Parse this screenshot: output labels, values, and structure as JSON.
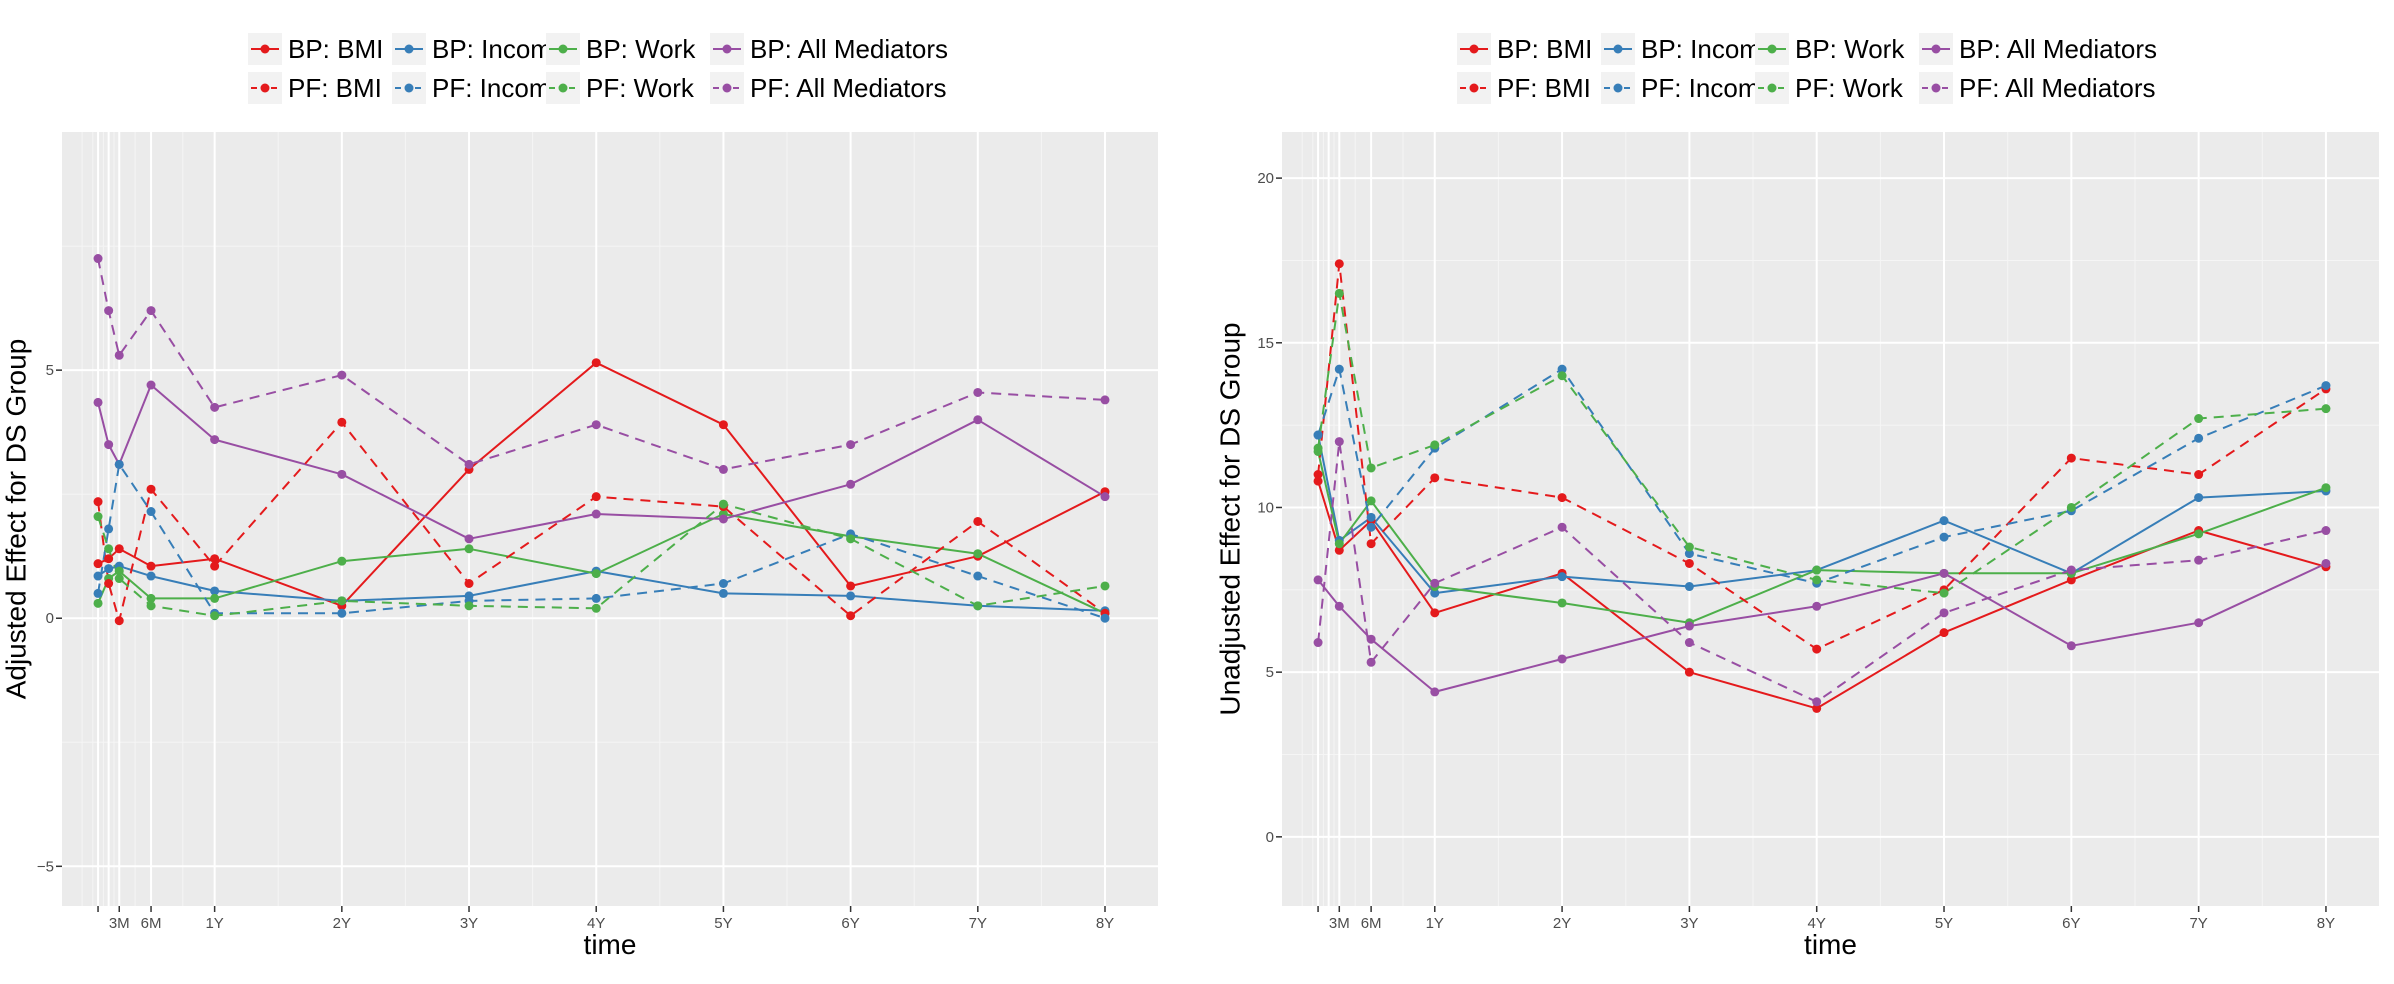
{
  "colors": {
    "BMI": "#e41a1c",
    "Income": "#377eb8",
    "Work": "#4daf4a",
    "All": "#984ea3",
    "panel": "#ebebeb",
    "grid_major": "#ffffff",
    "grid_minor": "#f5f5f5",
    "axis_text": "#4d4d4d"
  },
  "chart_data": [
    {
      "type": "line",
      "ylabel": "Adjusted Effect for DS Group",
      "xlabel": "time",
      "x_ticks": [
        {
          "x": 3,
          "label": "3M"
        },
        {
          "x": 6,
          "label": "6M"
        },
        {
          "x": 12,
          "label": "1Y"
        },
        {
          "x": 24,
          "label": "2Y"
        },
        {
          "x": 36,
          "label": "3Y"
        },
        {
          "x": 48,
          "label": "4Y"
        },
        {
          "x": 60,
          "label": "5Y"
        },
        {
          "x": 72,
          "label": "6Y"
        },
        {
          "x": 84,
          "label": "7Y"
        },
        {
          "x": 96,
          "label": "8Y"
        }
      ],
      "y_ticks": [
        {
          "y": -5,
          "label": "−5"
        },
        {
          "y": 0,
          "label": "0"
        },
        {
          "y": 5,
          "label": "5"
        }
      ],
      "xlim": [
        -2.4,
        101
      ],
      "ylim": [
        -5.8,
        9.8
      ],
      "legend": {
        "position": "top",
        "entries": [
          {
            "label": "BP: BMI",
            "key": "BMI",
            "dashed": false
          },
          {
            "label": "BP: Income",
            "key": "Income",
            "dashed": false
          },
          {
            "label": "BP: Work",
            "key": "Work",
            "dashed": false
          },
          {
            "label": "BP: All Mediators",
            "key": "All",
            "dashed": false
          },
          {
            "label": "PF: BMI",
            "key": "BMI",
            "dashed": true
          },
          {
            "label": "PF: Income",
            "key": "Income",
            "dashed": true
          },
          {
            "label": "PF: Work",
            "key": "Work",
            "dashed": true
          },
          {
            "label": "PF: All Mediators",
            "key": "All",
            "dashed": true
          }
        ]
      },
      "series": [
        {
          "name": "BP: BMI",
          "key": "BMI",
          "dashed": false,
          "x": [
            1,
            2,
            3,
            6,
            12,
            24,
            36,
            48,
            60,
            72,
            84,
            96
          ],
          "y": [
            1.1,
            1.2,
            1.4,
            1.05,
            1.2,
            0.25,
            3.0,
            5.15,
            3.9,
            0.65,
            1.25,
            2.55
          ]
        },
        {
          "name": "BP: Income",
          "key": "Income",
          "dashed": false,
          "x": [
            1,
            2,
            3,
            6,
            12,
            24,
            36,
            48,
            60,
            72,
            84,
            96
          ],
          "y": [
            0.85,
            1.0,
            1.05,
            0.85,
            0.55,
            0.35,
            0.45,
            0.95,
            0.5,
            0.45,
            0.25,
            0.15
          ]
        },
        {
          "name": "BP: Work",
          "key": "Work",
          "dashed": false,
          "x": [
            1,
            2,
            3,
            6,
            12,
            24,
            36,
            48,
            60,
            72,
            84,
            96
          ],
          "y": [
            0.3,
            0.8,
            0.95,
            0.4,
            0.4,
            1.15,
            1.4,
            0.9,
            2.1,
            1.65,
            1.3,
            0.1
          ]
        },
        {
          "name": "BP: All Mediators",
          "key": "All",
          "dashed": false,
          "x": [
            1,
            2,
            3,
            6,
            12,
            24,
            36,
            48,
            60,
            72,
            84,
            96
          ],
          "y": [
            4.35,
            3.5,
            3.1,
            4.7,
            3.6,
            2.9,
            1.6,
            2.1,
            2.0,
            2.7,
            4.0,
            2.45
          ]
        },
        {
          "name": "PF: BMI",
          "key": "BMI",
          "dashed": true,
          "x": [
            1,
            2,
            3,
            6,
            12,
            24,
            36,
            48,
            60,
            72,
            84,
            96
          ],
          "y": [
            2.35,
            0.7,
            -0.05,
            2.6,
            1.05,
            3.95,
            0.7,
            2.45,
            2.25,
            0.05,
            1.95,
            0.1
          ]
        },
        {
          "name": "PF: Income",
          "key": "Income",
          "dashed": true,
          "x": [
            1,
            2,
            3,
            6,
            12,
            24,
            36,
            48,
            60,
            72,
            84,
            96
          ],
          "y": [
            0.5,
            1.8,
            3.1,
            2.15,
            0.1,
            0.1,
            0.35,
            0.4,
            0.7,
            1.7,
            0.85,
            0.0
          ]
        },
        {
          "name": "PF: Work",
          "key": "Work",
          "dashed": true,
          "x": [
            1,
            2,
            3,
            6,
            12,
            24,
            36,
            48,
            60,
            72,
            84,
            96
          ],
          "y": [
            2.05,
            1.4,
            0.8,
            0.25,
            0.05,
            0.35,
            0.25,
            0.2,
            2.3,
            1.6,
            0.25,
            0.65
          ]
        },
        {
          "name": "PF: All Mediators",
          "key": "All",
          "dashed": true,
          "x": [
            1,
            2,
            3,
            6,
            12,
            24,
            36,
            48,
            60,
            72,
            84,
            96
          ],
          "y": [
            7.25,
            6.2,
            5.3,
            6.2,
            4.25,
            4.9,
            3.1,
            3.9,
            3.0,
            3.5,
            4.55,
            4.4
          ]
        }
      ]
    },
    {
      "type": "line",
      "ylabel": "Unadjusted Effect for DS Group",
      "xlabel": "time",
      "x_ticks": [
        {
          "x": 3,
          "label": "3M"
        },
        {
          "x": 6,
          "label": "6M"
        },
        {
          "x": 12,
          "label": "1Y"
        },
        {
          "x": 24,
          "label": "2Y"
        },
        {
          "x": 36,
          "label": "3Y"
        },
        {
          "x": 48,
          "label": "4Y"
        },
        {
          "x": 60,
          "label": "5Y"
        },
        {
          "x": 72,
          "label": "6Y"
        },
        {
          "x": 84,
          "label": "7Y"
        },
        {
          "x": 96,
          "label": "8Y"
        }
      ],
      "y_ticks": [
        {
          "y": 0,
          "label": "0"
        },
        {
          "y": 5,
          "label": "5"
        },
        {
          "x_note": "",
          "y": 10,
          "label": "10"
        },
        {
          "y": 15,
          "label": "15"
        },
        {
          "y": 20,
          "label": "20"
        }
      ],
      "xlim": [
        -2.4,
        101
      ],
      "ylim": [
        -2.1,
        21.4
      ],
      "legend": {
        "position": "top",
        "entries": [
          {
            "label": "BP: BMI",
            "key": "BMI",
            "dashed": false
          },
          {
            "label": "BP: Income",
            "key": "Income",
            "dashed": false
          },
          {
            "label": "BP: Work",
            "key": "Work",
            "dashed": false
          },
          {
            "label": "BP: All Mediators",
            "key": "All",
            "dashed": false
          },
          {
            "label": "PF: BMI",
            "key": "BMI",
            "dashed": true
          },
          {
            "label": "PF: Income",
            "key": "Income",
            "dashed": true
          },
          {
            "label": "PF: Work",
            "key": "Work",
            "dashed": true
          },
          {
            "label": "PF: All Mediators",
            "key": "All",
            "dashed": true
          }
        ]
      },
      "series": [
        {
          "name": "BP: BMI",
          "key": "BMI",
          "dashed": false,
          "x": [
            1,
            3,
            6,
            12,
            24,
            36,
            48,
            60,
            72,
            84,
            96
          ],
          "y": [
            10.8,
            8.7,
            9.6,
            6.8,
            8.0,
            5.0,
            3.9,
            6.2,
            7.8,
            9.3,
            8.2
          ]
        },
        {
          "name": "BP: Income",
          "key": "Income",
          "dashed": false,
          "x": [
            1,
            3,
            6,
            12,
            24,
            36,
            48,
            60,
            72,
            84,
            96
          ],
          "y": [
            12.2,
            9.0,
            9.7,
            7.4,
            7.9,
            7.6,
            8.1,
            9.6,
            8.0,
            10.3,
            10.5
          ]
        },
        {
          "name": "BP: Work",
          "key": "Work",
          "dashed": false,
          "x": [
            1,
            3,
            6,
            12,
            24,
            36,
            48,
            60,
            72,
            84,
            96
          ],
          "y": [
            11.7,
            8.9,
            10.2,
            7.6,
            7.1,
            6.5,
            8.1,
            8.0,
            8.0,
            9.2,
            10.6
          ]
        },
        {
          "name": "BP: All Mediators",
          "key": "All",
          "dashed": false,
          "x": [
            1,
            3,
            6,
            12,
            24,
            36,
            48,
            60,
            72,
            84,
            96
          ],
          "y": [
            7.8,
            7.0,
            6.0,
            4.4,
            5.4,
            6.4,
            7.0,
            8.0,
            5.8,
            6.5,
            8.3
          ]
        },
        {
          "name": "PF: BMI",
          "key": "BMI",
          "dashed": true,
          "x": [
            1,
            3,
            6,
            12,
            24,
            36,
            48,
            60,
            72,
            84,
            96
          ],
          "y": [
            11.0,
            17.4,
            8.9,
            10.9,
            10.3,
            8.3,
            5.7,
            7.5,
            11.5,
            11.0,
            13.6
          ]
        },
        {
          "name": "PF: Income",
          "key": "Income",
          "dashed": true,
          "x": [
            1,
            3,
            6,
            12,
            24,
            36,
            48,
            60,
            72,
            84,
            96
          ],
          "y": [
            12.2,
            14.2,
            9.4,
            11.8,
            14.2,
            8.6,
            7.7,
            9.1,
            9.9,
            12.1,
            13.7
          ]
        },
        {
          "name": "PF: Work",
          "key": "Work",
          "dashed": true,
          "x": [
            1,
            3,
            6,
            12,
            24,
            36,
            48,
            60,
            72,
            84,
            96
          ],
          "y": [
            11.8,
            16.5,
            11.2,
            11.9,
            14.0,
            8.8,
            7.8,
            7.4,
            10.0,
            12.7,
            13.0
          ]
        },
        {
          "name": "PF: All Mediators",
          "key": "All",
          "dashed": true,
          "x": [
            1,
            3,
            6,
            12,
            24,
            36,
            48,
            60,
            72,
            84,
            96
          ],
          "y": [
            5.9,
            12.0,
            5.3,
            7.7,
            9.4,
            5.9,
            4.1,
            6.8,
            8.1,
            8.4,
            9.3
          ]
        }
      ]
    }
  ]
}
